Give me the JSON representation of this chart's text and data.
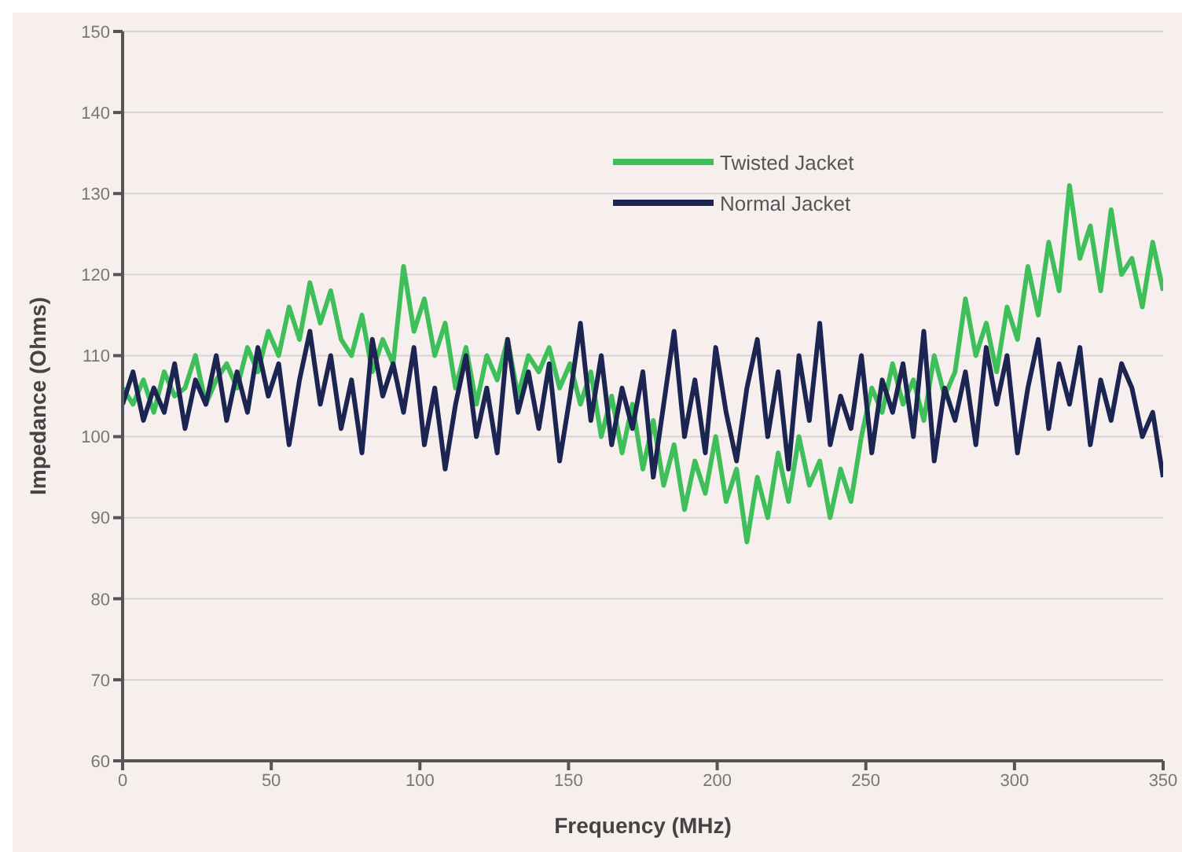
{
  "chart_data": {
    "type": "line",
    "xlabel": "Frequency (MHz)",
    "ylabel": "Impedance (Ohms)",
    "x": [
      0,
      3.5,
      7,
      10.5,
      14,
      17.5,
      21,
      24.5,
      28,
      31.5,
      35,
      38.5,
      42,
      45.5,
      49,
      52.5,
      56,
      59.5,
      63,
      66.5,
      70,
      73.5,
      77,
      80.5,
      84,
      87.5,
      91,
      94.5,
      98,
      101.5,
      105,
      108.5,
      112,
      115.5,
      119,
      122.5,
      126,
      129.5,
      133,
      136.5,
      140,
      143.5,
      147,
      150.5,
      154,
      157.5,
      161,
      164.5,
      168,
      171.5,
      175,
      178.5,
      182,
      185.5,
      189,
      192.5,
      196,
      199.5,
      203,
      206.5,
      210,
      213.5,
      217,
      220.5,
      224,
      227.5,
      231,
      234.5,
      238,
      241.5,
      245,
      248.5,
      252,
      255.5,
      259,
      262.5,
      266,
      269.5,
      273,
      276.5,
      280,
      283.5,
      287,
      290.5,
      294,
      297.5,
      301,
      304.5,
      308,
      311.5,
      315,
      318.5,
      322,
      325.5,
      329,
      332.5,
      336,
      339.5,
      343,
      346.5,
      350
    ],
    "series": [
      {
        "name": "Twisted Jacket",
        "color": "#3fbf5a",
        "values": [
          106,
          104,
          107,
          103,
          108,
          105,
          106,
          110,
          104,
          107,
          109,
          106,
          111,
          108,
          113,
          110,
          116,
          112,
          119,
          114,
          118,
          112,
          110,
          115,
          108,
          112,
          109,
          121,
          113,
          117,
          110,
          114,
          106,
          111,
          104,
          110,
          107,
          112,
          105,
          110,
          108,
          111,
          106,
          109,
          104,
          108,
          100,
          105,
          98,
          104,
          96,
          102,
          94,
          99,
          91,
          97,
          93,
          100,
          92,
          96,
          87,
          95,
          90,
          98,
          92,
          100,
          94,
          97,
          90,
          96,
          92,
          100,
          106,
          103,
          109,
          104,
          107,
          102,
          110,
          105,
          108,
          117,
          110,
          114,
          108,
          116,
          112,
          121,
          115,
          124,
          118,
          131,
          122,
          126,
          118,
          128,
          120,
          122,
          116,
          124,
          118
        ]
      },
      {
        "name": "Normal Jacket",
        "color": "#1c2452",
        "values": [
          104,
          108,
          102,
          106,
          103,
          109,
          101,
          107,
          104,
          110,
          102,
          108,
          103,
          111,
          105,
          109,
          99,
          107,
          113,
          104,
          110,
          101,
          107,
          98,
          112,
          105,
          109,
          103,
          111,
          99,
          106,
          96,
          104,
          110,
          100,
          106,
          98,
          112,
          103,
          108,
          101,
          109,
          97,
          105,
          114,
          102,
          110,
          99,
          106,
          101,
          108,
          95,
          104,
          113,
          100,
          107,
          98,
          111,
          103,
          97,
          106,
          112,
          100,
          108,
          96,
          110,
          102,
          114,
          99,
          105,
          101,
          110,
          98,
          107,
          103,
          109,
          100,
          113,
          97,
          106,
          102,
          108,
          99,
          111,
          104,
          110,
          98,
          106,
          112,
          101,
          109,
          104,
          111,
          99,
          107,
          102,
          109,
          106,
          100,
          103,
          95
        ]
      }
    ],
    "xlim": [
      0,
      350
    ],
    "xticks": [
      0,
      50,
      100,
      150,
      200,
      250,
      300,
      350
    ],
    "ylim": [
      60,
      150
    ],
    "yticks": [
      60,
      70,
      80,
      90,
      100,
      110,
      120,
      130,
      140,
      150
    ],
    "grid": "y",
    "legend": "top right",
    "marker": "none",
    "line_style": "solid"
  }
}
